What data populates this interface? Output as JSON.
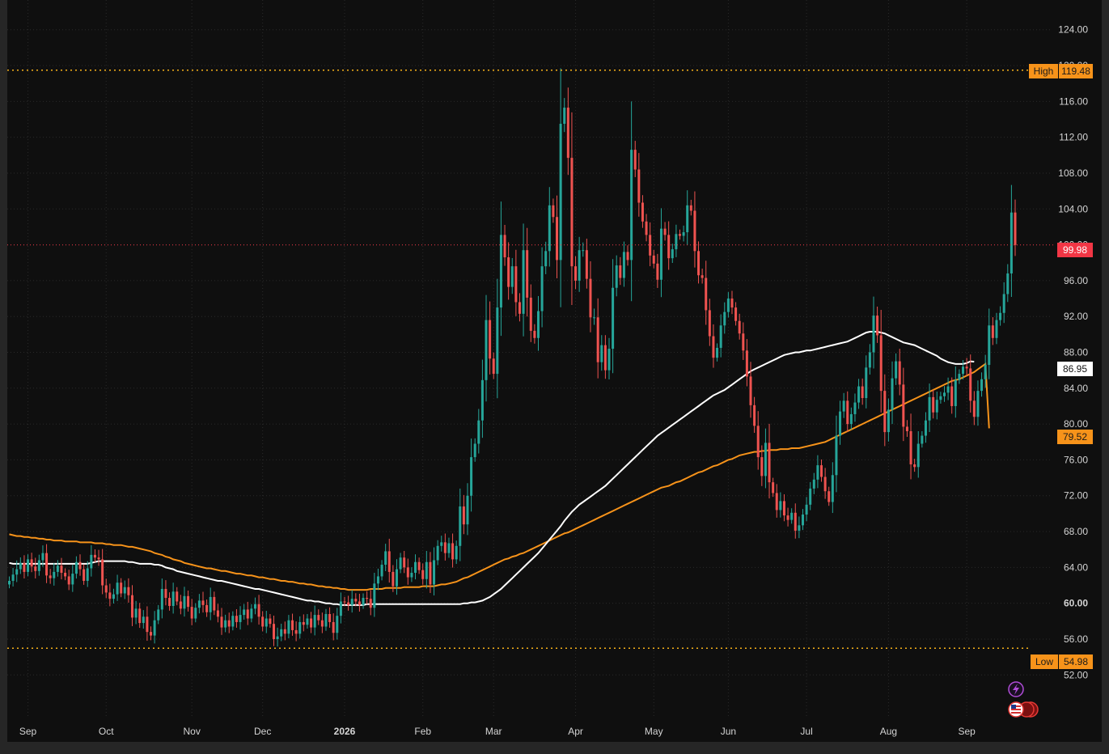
{
  "colors": {
    "background": "#0f0f0f",
    "frame": "#262626",
    "grid": "#2a2a2a",
    "up_candle": "#26a69a",
    "down_candle": "#ef5350",
    "ma_fast": "#ffffff",
    "ma_slow": "#f7931a",
    "high_low_line": "#f7b21a",
    "last_price": "#f23645",
    "axis_text": "#d4d4d4"
  },
  "markers": {
    "high": {
      "label": "High",
      "value": "119.48"
    },
    "low": {
      "label": "Low",
      "value": "54.98"
    },
    "last_price": "99.98",
    "ma_fast_value": "86.95",
    "ma_slow_value": "79.52"
  },
  "event_icons": [
    "lightning-icon",
    "us-flag-icon"
  ],
  "chart_data": {
    "type": "candlestick",
    "title": "",
    "xlabel": "",
    "ylabel": "",
    "ylim": [
      49.5,
      126.5
    ],
    "grid": true,
    "y_ticks": [
      "52.00",
      "56.00",
      "60.00",
      "64.00",
      "68.00",
      "72.00",
      "76.00",
      "80.00",
      "84.00",
      "88.00",
      "92.00",
      "96.00",
      "100.00",
      "104.00",
      "108.00",
      "112.00",
      "116.00",
      "120.00",
      "124.00"
    ],
    "bold_y_ticks": [
      "60.00"
    ],
    "x_ticks": [
      {
        "label": "Sep",
        "t": 5
      },
      {
        "label": "Oct",
        "t": 26
      },
      {
        "label": "Nov",
        "t": 49
      },
      {
        "label": "Dec",
        "t": 68
      },
      {
        "label": "2026",
        "t": 90,
        "bold": true
      },
      {
        "label": "Feb",
        "t": 111
      },
      {
        "label": "Mar",
        "t": 130
      },
      {
        "label": "Apr",
        "t": 152
      },
      {
        "label": "May",
        "t": 173
      },
      {
        "label": "Jun",
        "t": 193
      },
      {
        "label": "Jul",
        "t": 214
      },
      {
        "label": "Aug",
        "t": 236
      },
      {
        "label": "Sep",
        "t": 257
      }
    ],
    "close": [
      62.5,
      63.2,
      63.8,
      64.5,
      63.5,
      64.9,
      64.1,
      63.6,
      64.8,
      65.6,
      63.1,
      62.8,
      63.5,
      64.2,
      63.4,
      63.0,
      62.1,
      63.3,
      64.6,
      63.8,
      62.5,
      63.9,
      65.4,
      65.1,
      64.9,
      62.0,
      61.2,
      60.5,
      61.0,
      62.3,
      61.1,
      61.8,
      60.9,
      58.4,
      59.4,
      57.8,
      58.5,
      56.8,
      56.4,
      58.1,
      59.3,
      61.6,
      60.6,
      59.7,
      61.3,
      60.2,
      59.4,
      60.8,
      59.6,
      58.3,
      59.5,
      60.3,
      59.8,
      59.0,
      60.7,
      59.2,
      58.5,
      57.3,
      58.1,
      57.4,
      58.6,
      57.9,
      58.7,
      59.3,
      58.3,
      59.4,
      59.9,
      58.5,
      57.4,
      58.3,
      57.7,
      56.0,
      56.3,
      57.1,
      56.6,
      58.1,
      57.0,
      56.6,
      57.9,
      57.6,
      58.3,
      57.3,
      58.7,
      58.1,
      57.4,
      58.8,
      57.9,
      56.7,
      58.6,
      60.2,
      60.1,
      59.8,
      60.5,
      60.2,
      59.8,
      60.6,
      60.5,
      59.5,
      62.2,
      63.0,
      64.3,
      65.8,
      63.5,
      61.9,
      63.8,
      65.1,
      64.0,
      62.9,
      63.4,
      64.6,
      63.7,
      62.7,
      64.6,
      62.1,
      64.8,
      66.4,
      66.8,
      65.6,
      66.7,
      64.9,
      66.4,
      70.8,
      68.8,
      72.0,
      76.3,
      77.8,
      80.4,
      84.9,
      91.6,
      87.3,
      85.6,
      93.0,
      101.1,
      98.6,
      95.3,
      97.6,
      93.6,
      92.3,
      99.4,
      94.1,
      90.4,
      89.6,
      92.6,
      97.6,
      99.3,
      104.4,
      103.1,
      98.3,
      113.5,
      115.3,
      109.7,
      97.6,
      96.0,
      99.4,
      99.4,
      96.2,
      91.9,
      91.9,
      86.9,
      88.8,
      86.0,
      88.4,
      95.2,
      97.7,
      96.3,
      99.2,
      98.3,
      110.6,
      108.4,
      104.7,
      102.6,
      101.1,
      98.8,
      97.9,
      96.1,
      101.8,
      101.1,
      98.5,
      99.5,
      101.2,
      101.0,
      101.4,
      104.4,
      103.8,
      99.3,
      96.6,
      96.3,
      92.7,
      89.8,
      87.4,
      88.5,
      91.0,
      92.5,
      94.0,
      93.0,
      91.5,
      90.1,
      88.2,
      85.3,
      82.1,
      79.8,
      76.3,
      74.2,
      77.9,
      73.5,
      72.3,
      70.4,
      71.4,
      69.8,
      69.3,
      70.1,
      68.1,
      68.7,
      69.9,
      71.0,
      72.8,
      73.8,
      75.4,
      74.1,
      72.5,
      71.3,
      74.3,
      78.7,
      81.4,
      82.6,
      80.0,
      81.1,
      82.4,
      84.2,
      82.9,
      86.3,
      88.0,
      92.1,
      89.9,
      83.7,
      79.1,
      81.6,
      85.1,
      87.0,
      84.4,
      79.7,
      79.2,
      75.5,
      75.2,
      77.8,
      78.7,
      80.4,
      83.0,
      81.3,
      82.7,
      83.1,
      83.5,
      84.2,
      82.0,
      84.9,
      85.6,
      86.4,
      86.2,
      82.6,
      80.8,
      83.7,
      85.0,
      86.6,
      91.0,
      89.6,
      91.6,
      92.4,
      94.5,
      96.8,
      103.6,
      99.98
    ],
    "ma_fast": [
      64.5,
      64.4,
      64.4,
      64.4,
      64.4,
      64.4,
      64.4,
      64.4,
      64.4,
      64.4,
      64.4,
      64.4,
      64.4,
      64.4,
      64.4,
      64.4,
      64.4,
      64.4,
      64.4,
      64.4,
      64.4,
      64.4,
      64.5,
      64.6,
      64.7,
      64.7,
      64.7,
      64.7,
      64.7,
      64.7,
      64.7,
      64.7,
      64.6,
      64.6,
      64.5,
      64.4,
      64.4,
      64.4,
      64.4,
      64.3,
      64.3,
      64.2,
      64.0,
      63.9,
      63.8,
      63.6,
      63.5,
      63.4,
      63.3,
      63.2,
      63.1,
      63.0,
      62.9,
      62.8,
      62.7,
      62.6,
      62.5,
      62.5,
      62.4,
      62.3,
      62.2,
      62.1,
      62.0,
      61.9,
      61.8,
      61.7,
      61.6,
      61.6,
      61.5,
      61.4,
      61.3,
      61.2,
      61.1,
      61.0,
      60.9,
      60.8,
      60.7,
      60.6,
      60.5,
      60.4,
      60.3,
      60.3,
      60.2,
      60.2,
      60.1,
      60.0,
      60.0,
      59.9,
      59.9,
      59.8,
      59.8,
      59.8,
      59.8,
      59.8,
      59.8,
      59.8,
      59.9,
      59.9,
      59.9,
      59.9,
      59.9,
      59.9,
      59.9,
      59.9,
      59.9,
      59.9,
      59.9,
      59.9,
      59.9,
      59.9,
      59.9,
      59.9,
      59.9,
      59.9,
      59.9,
      59.9,
      59.9,
      59.9,
      59.9,
      59.9,
      59.9,
      59.9,
      60.0,
      60.0,
      60.1,
      60.1,
      60.2,
      60.3,
      60.5,
      60.7,
      61.0,
      61.3,
      61.6,
      62.0,
      62.4,
      62.8,
      63.2,
      63.6,
      64.0,
      64.4,
      64.8,
      65.2,
      65.6,
      66.1,
      66.6,
      67.1,
      67.6,
      68.1,
      68.6,
      69.2,
      69.7,
      70.2,
      70.6,
      71.0,
      71.3,
      71.6,
      71.9,
      72.2,
      72.5,
      72.8,
      73.1,
      73.5,
      73.9,
      74.3,
      74.7,
      75.1,
      75.5,
      75.9,
      76.3,
      76.7,
      77.1,
      77.5,
      77.9,
      78.3,
      78.7,
      79.0,
      79.3,
      79.6,
      79.9,
      80.2,
      80.5,
      80.8,
      81.1,
      81.4,
      81.7,
      82.0,
      82.3,
      82.6,
      82.9,
      83.2,
      83.4,
      83.6,
      83.8,
      84.1,
      84.4,
      84.7,
      85.0,
      85.3,
      85.6,
      85.9,
      86.1,
      86.3,
      86.5,
      86.7,
      86.9,
      87.1,
      87.3,
      87.5,
      87.7,
      87.8,
      87.9,
      88.0,
      88.0,
      88.1,
      88.2,
      88.2,
      88.3,
      88.4,
      88.5,
      88.6,
      88.7,
      88.8,
      88.9,
      89.0,
      89.1,
      89.2,
      89.4,
      89.6,
      89.8,
      90.0,
      90.2,
      90.3,
      90.3,
      90.3,
      90.2,
      90.1,
      89.9,
      89.7,
      89.5,
      89.3,
      89.1,
      89.0,
      88.9,
      88.8,
      88.6,
      88.4,
      88.2,
      88.0,
      87.8,
      87.6,
      87.3,
      87.1,
      86.9,
      86.8,
      86.7,
      86.7,
      86.7,
      86.8,
      87.0,
      86.95
    ],
    "ma_slow": [
      67.7,
      67.6,
      67.5,
      67.5,
      67.4,
      67.4,
      67.3,
      67.3,
      67.2,
      67.2,
      67.1,
      67.1,
      67.0,
      67.0,
      67.0,
      66.9,
      66.9,
      66.9,
      66.9,
      66.8,
      66.8,
      66.8,
      66.8,
      66.7,
      66.7,
      66.7,
      66.6,
      66.6,
      66.5,
      66.5,
      66.5,
      66.4,
      66.3,
      66.3,
      66.2,
      66.1,
      66.0,
      65.9,
      65.8,
      65.6,
      65.5,
      65.4,
      65.2,
      65.1,
      64.9,
      64.8,
      64.7,
      64.5,
      64.4,
      64.3,
      64.2,
      64.1,
      64.0,
      63.9,
      63.9,
      63.8,
      63.7,
      63.6,
      63.6,
      63.5,
      63.4,
      63.3,
      63.3,
      63.2,
      63.1,
      63.1,
      63.0,
      62.9,
      62.9,
      62.8,
      62.7,
      62.7,
      62.6,
      62.5,
      62.5,
      62.4,
      62.4,
      62.3,
      62.2,
      62.2,
      62.1,
      62.1,
      62.0,
      61.9,
      61.9,
      61.8,
      61.8,
      61.7,
      61.7,
      61.6,
      61.6,
      61.5,
      61.5,
      61.5,
      61.5,
      61.5,
      61.5,
      61.6,
      61.6,
      61.6,
      61.6,
      61.7,
      61.7,
      61.7,
      61.7,
      61.7,
      61.8,
      61.8,
      61.8,
      61.8,
      61.8,
      61.9,
      61.9,
      61.9,
      61.9,
      62.0,
      62.1,
      62.1,
      62.2,
      62.3,
      62.4,
      62.6,
      62.8,
      62.9,
      63.1,
      63.3,
      63.5,
      63.7,
      63.9,
      64.1,
      64.3,
      64.5,
      64.7,
      64.9,
      65.0,
      65.2,
      65.3,
      65.5,
      65.6,
      65.8,
      66.0,
      66.2,
      66.4,
      66.6,
      66.8,
      67.0,
      67.2,
      67.4,
      67.6,
      67.8,
      67.9,
      68.1,
      68.3,
      68.5,
      68.7,
      68.9,
      69.1,
      69.3,
      69.5,
      69.7,
      69.9,
      70.1,
      70.3,
      70.5,
      70.7,
      70.9,
      71.1,
      71.3,
      71.5,
      71.7,
      71.9,
      72.1,
      72.3,
      72.5,
      72.7,
      72.9,
      73.0,
      73.1,
      73.3,
      73.5,
      73.6,
      73.8,
      74.0,
      74.2,
      74.4,
      74.6,
      74.7,
      74.9,
      75.1,
      75.3,
      75.4,
      75.6,
      75.8,
      76.0,
      76.1,
      76.3,
      76.5,
      76.6,
      76.7,
      76.8,
      76.9,
      76.9,
      77.0,
      77.0,
      77.1,
      77.1,
      77.1,
      77.2,
      77.2,
      77.2,
      77.3,
      77.3,
      77.3,
      77.4,
      77.5,
      77.6,
      77.7,
      77.8,
      77.9,
      78.0,
      78.2,
      78.4,
      78.6,
      78.8,
      79.0,
      79.2,
      79.4,
      79.6,
      79.8,
      80.0,
      80.2,
      80.4,
      80.6,
      80.8,
      81.0,
      81.2,
      81.4,
      81.6,
      81.8,
      82.0,
      82.2,
      82.4,
      82.6,
      82.8,
      83.0,
      83.2,
      83.4,
      83.6,
      83.8,
      84.0,
      84.2,
      84.4,
      84.6,
      84.8,
      84.9,
      85.0,
      85.2,
      85.4,
      85.6,
      85.8,
      86.1,
      86.4,
      86.7,
      79.52
    ]
  }
}
